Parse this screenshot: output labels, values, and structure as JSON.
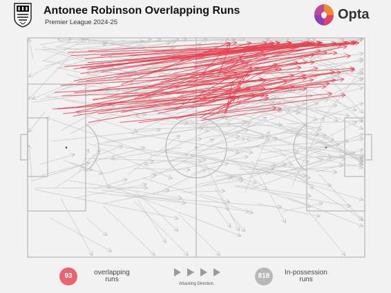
{
  "header": {
    "title": "Antonee Robinson Overlapping Runs",
    "subtitle": "Premier League 2024-25",
    "club_crest_icon": "fulham-crest-icon",
    "provider_logo": "Opta",
    "provider_logo_icon": "opta-logo-icon"
  },
  "pitch": {
    "line_color": "#b5b5b5",
    "background": "#f2f2f2",
    "attacking_direction": "left-to-right"
  },
  "legend": {
    "overlapping": {
      "count": "93",
      "label": "overlapping runs",
      "color": "#e8646f"
    },
    "in_possession": {
      "count": "818",
      "label": "In-possession runs",
      "color": "#b8b8b8"
    },
    "direction_label": "Attacking Direction",
    "direction_icon": "play-arrow-icon"
  },
  "colors": {
    "overlap_run": "#e8404f",
    "possession_run": "#c4c4c4",
    "crest_black": "#111111",
    "opta_orange": "#f08a2b",
    "opta_purple": "#8b3fb8"
  }
}
